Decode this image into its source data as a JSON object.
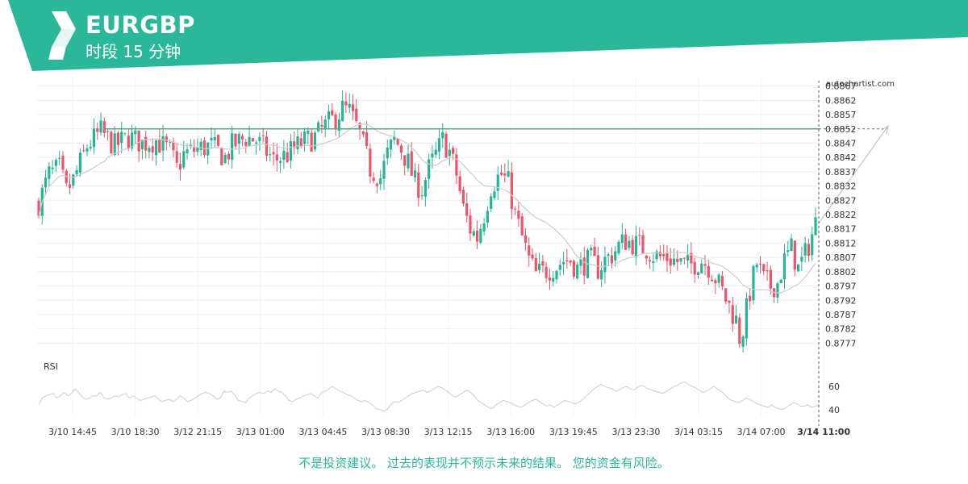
{
  "header": {
    "symbol": "EURGBP",
    "period_label": "时段 15 分钟",
    "brand_color": "#2bb89a"
  },
  "watermark": "autochartist.com",
  "disclaimer": "不是投资建议。 过去的表现并不预示未来的结果。 您的资金有风险。",
  "chart_data": {
    "type": "candlestick",
    "y_ticks": [
      "0.8867",
      "0.8862",
      "0.8857",
      "0.8852",
      "0.8847",
      "0.8842",
      "0.8837",
      "0.8832",
      "0.8827",
      "0.8822",
      "0.8817",
      "0.8812",
      "0.8807",
      "0.8802",
      "0.8797",
      "0.8792",
      "0.8787",
      "0.8782",
      "0.8777"
    ],
    "ylim": [
      0.8774,
      0.887
    ],
    "x_ticks": [
      "3/10 14:45",
      "3/10 18:30",
      "3/12 21:15",
      "3/13 01:00",
      "3/13 04:45",
      "3/13 08:30",
      "3/13 12:15",
      "3/13 16:00",
      "3/13 19:45",
      "3/13 23:30",
      "3/14 03:15",
      "3/14 07:00",
      "3/14 11:00"
    ],
    "highlighted_x_tick": "3/14 11:00",
    "resistance_level": 0.8852,
    "forecast": {
      "from": 0.8819,
      "to": 0.8853
    },
    "price_path": [
      [
        0,
        0.8826
      ],
      [
        3,
        0.8836
      ],
      [
        6,
        0.8838
      ],
      [
        8,
        0.883
      ],
      [
        10,
        0.8834
      ],
      [
        14,
        0.8846
      ],
      [
        18,
        0.8851
      ],
      [
        22,
        0.8846
      ],
      [
        26,
        0.8849
      ],
      [
        30,
        0.8847
      ],
      [
        34,
        0.8848
      ],
      [
        38,
        0.8844
      ],
      [
        40,
        0.8838
      ],
      [
        42,
        0.8843
      ],
      [
        46,
        0.8845
      ],
      [
        50,
        0.8846
      ],
      [
        54,
        0.8842
      ],
      [
        56,
        0.8846
      ],
      [
        60,
        0.8849
      ],
      [
        63,
        0.8848
      ],
      [
        66,
        0.8844
      ],
      [
        68,
        0.8841
      ],
      [
        72,
        0.8843
      ],
      [
        76,
        0.8847
      ],
      [
        80,
        0.8849
      ],
      [
        83,
        0.8853
      ],
      [
        86,
        0.8856
      ],
      [
        88,
        0.8859
      ],
      [
        90,
        0.8858
      ],
      [
        93,
        0.885
      ],
      [
        96,
        0.8838
      ],
      [
        99,
        0.8835
      ],
      [
        101,
        0.8843
      ],
      [
        103,
        0.8848
      ],
      [
        105,
        0.8845
      ],
      [
        107,
        0.884
      ],
      [
        109,
        0.8833
      ],
      [
        111,
        0.8831
      ],
      [
        113,
        0.8838
      ],
      [
        115,
        0.8843
      ],
      [
        117,
        0.8848
      ],
      [
        119,
        0.8844
      ],
      [
        121,
        0.8836
      ],
      [
        123,
        0.8824
      ],
      [
        125,
        0.8817
      ],
      [
        127,
        0.8814
      ],
      [
        129,
        0.8822
      ],
      [
        131,
        0.8832
      ],
      [
        133,
        0.8835
      ],
      [
        134,
        0.8836
      ],
      [
        136,
        0.8833
      ],
      [
        138,
        0.8822
      ],
      [
        140,
        0.8814
      ],
      [
        142,
        0.8806
      ],
      [
        144,
        0.8801
      ],
      [
        146,
        0.8802
      ],
      [
        148,
        0.8803
      ],
      [
        150,
        0.8804
      ],
      [
        152,
        0.8806
      ],
      [
        154,
        0.8806
      ],
      [
        156,
        0.8803
      ],
      [
        158,
        0.8805
      ],
      [
        160,
        0.8806
      ],
      [
        162,
        0.8803
      ],
      [
        164,
        0.8806
      ],
      [
        166,
        0.8808
      ],
      [
        168,
        0.8811
      ],
      [
        170,
        0.8813
      ],
      [
        172,
        0.8812
      ],
      [
        174,
        0.8811
      ],
      [
        176,
        0.881
      ],
      [
        178,
        0.8808
      ],
      [
        180,
        0.8807
      ],
      [
        182,
        0.8807
      ],
      [
        184,
        0.8806
      ],
      [
        186,
        0.8805
      ],
      [
        188,
        0.8804
      ],
      [
        190,
        0.8805
      ],
      [
        192,
        0.8806
      ],
      [
        194,
        0.8804
      ],
      [
        196,
        0.88
      ],
      [
        198,
        0.8795
      ],
      [
        200,
        0.879
      ],
      [
        202,
        0.8785
      ],
      [
        203,
        0.8779
      ],
      [
        204,
        0.8782
      ],
      [
        206,
        0.8795
      ],
      [
        208,
        0.8805
      ],
      [
        210,
        0.8799
      ],
      [
        212,
        0.8797
      ],
      [
        214,
        0.8798
      ],
      [
        216,
        0.8806
      ],
      [
        218,
        0.881
      ],
      [
        220,
        0.8803
      ],
      [
        222,
        0.8808
      ],
      [
        224,
        0.8815
      ],
      [
        225,
        0.8819
      ]
    ],
    "rsi": {
      "label": "RSI",
      "ticks": [
        "60",
        "40"
      ],
      "range": [
        35,
        72
      ],
      "values": [
        44,
        50,
        52,
        53,
        54,
        50,
        52,
        55,
        52,
        54,
        58,
        55,
        51,
        49,
        50,
        52,
        52,
        55,
        50,
        49,
        50,
        52,
        51,
        53,
        54,
        50,
        52,
        50,
        48,
        49,
        50,
        51,
        52,
        49,
        47,
        48,
        49,
        47,
        49,
        52,
        50,
        47,
        48,
        50,
        52,
        54,
        55,
        54,
        52,
        49,
        50,
        56,
        55,
        56,
        53,
        48,
        47,
        46,
        50,
        52,
        54,
        55,
        54,
        56,
        55,
        58,
        56,
        55,
        52,
        48,
        47,
        49,
        50,
        52,
        53,
        54,
        52,
        50,
        55,
        56,
        58,
        60,
        58,
        56,
        55,
        53,
        52,
        50,
        48,
        47,
        48,
        46,
        44,
        41,
        40,
        39,
        40,
        44,
        47,
        46,
        48,
        50,
        52,
        54,
        55,
        56,
        57,
        55,
        56,
        58,
        60,
        59,
        57,
        55,
        52,
        51,
        53,
        55,
        57,
        55,
        52,
        48,
        46,
        44,
        42,
        41,
        44,
        46,
        48,
        47,
        46,
        44,
        43,
        42,
        44,
        46,
        48,
        49,
        47,
        45,
        43,
        44,
        42,
        44,
        46,
        48,
        47,
        46,
        45,
        47,
        49,
        52,
        55,
        58,
        60,
        62,
        60,
        59,
        58,
        56,
        57,
        59,
        60,
        58,
        57,
        59,
        61,
        60,
        58,
        57,
        56,
        55,
        54,
        56,
        58,
        60,
        61,
        63,
        64,
        62,
        60,
        59,
        57,
        55,
        56,
        58,
        60,
        58,
        56,
        53,
        50,
        48,
        47,
        46,
        48,
        50,
        49,
        47,
        45,
        44,
        43,
        42,
        44,
        42,
        41,
        40,
        42,
        44,
        46,
        45,
        43,
        43,
        44,
        42,
        43,
        44
      ]
    }
  }
}
